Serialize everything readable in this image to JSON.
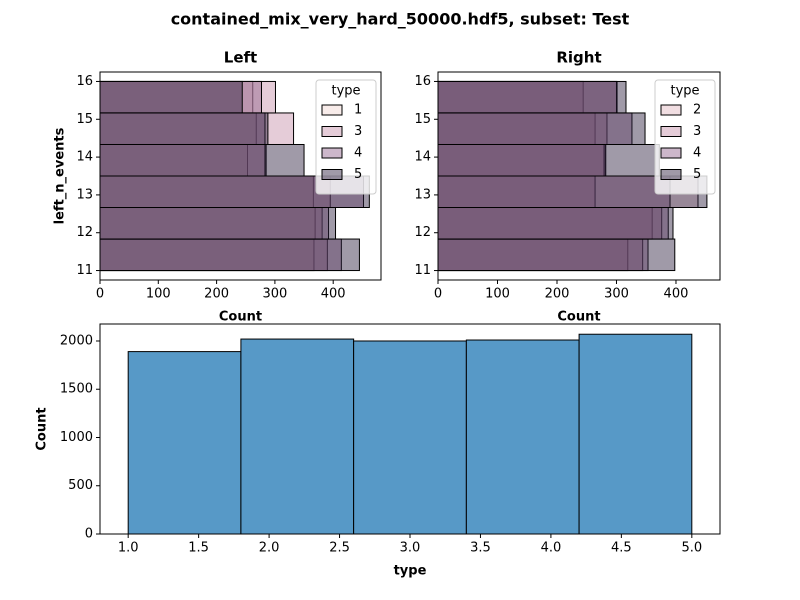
{
  "title": "contained_mix_very_hard_50000.hdf5, subset: Test",
  "chart_data": [
    {
      "type": "histogram",
      "orientation": "horizontal",
      "title": "Left",
      "xlabel": "Count",
      "ylabel": "left_n_events",
      "bins": [
        11,
        11.833,
        12.667,
        13.5,
        14.333,
        15.167,
        16
      ],
      "series": [
        {
          "name": "1",
          "color": "#f0d5d0",
          "values": [
            367,
            369,
            366,
            253,
            268,
            262
          ]
        },
        {
          "name": "3",
          "color": "#c58fa8",
          "values": [
            390,
            381,
            395,
            285,
            332,
            301
          ]
        },
        {
          "name": "4",
          "color": "#8e5f8a",
          "values": [
            414,
            392,
            452,
            283,
            283,
            277
          ]
        },
        {
          "name": "5",
          "color": "#2d1e3e",
          "values": [
            445,
            404,
            462,
            350,
            288,
            244
          ]
        }
      ],
      "xlim": [
        0,
        482
      ],
      "xticks": [
        0,
        100,
        200,
        300,
        400
      ],
      "ylim": [
        10.75,
        16.25
      ],
      "yticks": [
        11,
        12,
        13,
        14,
        15,
        16
      ],
      "legend_title": "type",
      "legend_loc": "upper right"
    },
    {
      "type": "histogram",
      "orientation": "horizontal",
      "title": "Right",
      "xlabel": "Count",
      "bins": [
        11,
        11.833,
        12.667,
        13.5,
        14.333,
        15.167,
        16
      ],
      "series": [
        {
          "name": "2",
          "color": "#e0b5bf",
          "values": [
            319,
            360,
            437,
            281,
            264,
            244
          ]
        },
        {
          "name": "3",
          "color": "#c58fa8",
          "values": [
            344,
            376,
            264,
            279,
            284,
            301
          ]
        },
        {
          "name": "4",
          "color": "#8e5f8a",
          "values": [
            353,
            387,
            390,
            282,
            326,
            300
          ]
        },
        {
          "name": "5",
          "color": "#2d1e3e",
          "values": [
            398,
            395,
            452,
            372,
            348,
            316
          ]
        }
      ],
      "xlim": [
        0,
        474
      ],
      "xticks": [
        0,
        100,
        200,
        300,
        400
      ],
      "ylim": [
        10.75,
        16.25
      ],
      "yticks": [
        11,
        12,
        13,
        14,
        15,
        16
      ],
      "legend_title": "type",
      "legend_loc": "upper right"
    },
    {
      "type": "histogram",
      "orientation": "vertical",
      "xlabel": "type",
      "ylabel": "Count",
      "bins": [
        1.0,
        1.8,
        2.6,
        3.4,
        4.2,
        5.0
      ],
      "values": [
        1890,
        2020,
        2000,
        2010,
        2070
      ],
      "color": "#5799c7",
      "xlim": [
        0.8,
        5.2
      ],
      "xticks": [
        {
          "value": 1,
          "label": "1.0"
        },
        1.5,
        {
          "value": 2,
          "label": "2.0"
        },
        2.5,
        {
          "value": 3,
          "label": "3.0"
        },
        3.5,
        {
          "value": 4,
          "label": "4.0"
        },
        4.5,
        {
          "value": 5,
          "label": "5.0"
        }
      ],
      "ylim": [
        0,
        2176
      ],
      "yticks": [
        0,
        500,
        1000,
        1500,
        2000
      ]
    }
  ]
}
